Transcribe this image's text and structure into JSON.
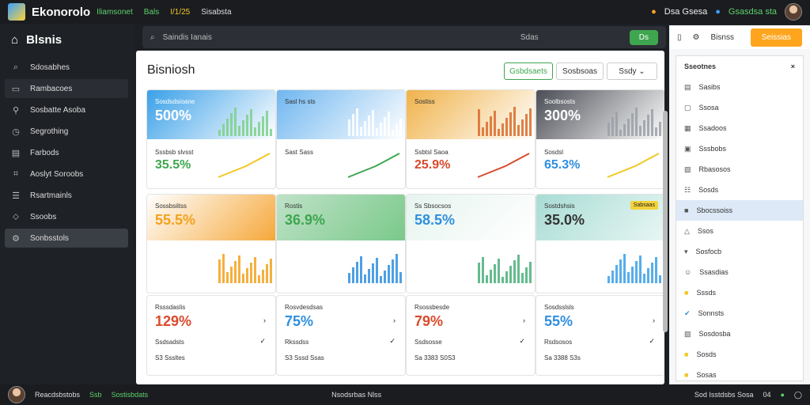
{
  "topbar": {
    "app_title": "Ekonorolo",
    "items": [
      "Iliamsonet",
      "Bals",
      "I/1/25",
      "Sisabsta"
    ],
    "right_label": "Dsa Gsesa",
    "right_link": "Gsasdsa sta"
  },
  "sidebar": {
    "title": "Blsnis",
    "items": [
      {
        "label": "Sdosabhes",
        "icon": "search-icon"
      },
      {
        "label": "Rambacoes",
        "icon": "folder-icon"
      },
      {
        "label": "Sosbatte Asoba",
        "icon": "pin-icon"
      },
      {
        "label": "Segrothing",
        "icon": "clock-icon"
      },
      {
        "label": "Farbods",
        "icon": "document-icon"
      },
      {
        "label": "Aoslyt Soroobs",
        "icon": "filter-icon"
      },
      {
        "label": "Rsartmainls",
        "icon": "list-icon"
      },
      {
        "label": "Ssoobs",
        "icon": "tag-icon"
      },
      {
        "label": "Sonbsstols",
        "icon": "settings-icon"
      }
    ]
  },
  "search": {
    "placeholder": "Saindis Ianais",
    "mid_label": "Sdas",
    "toggle_label": "Ds"
  },
  "main": {
    "title": "Bisniosh",
    "btn_green": "Gsbdsaets",
    "btn_mid": "Sosbsoas",
    "btn_select": "Ssdy"
  },
  "cards": [
    {
      "title": "Sosdsdsioane",
      "value": "500%",
      "sub_title": "Sssbsb slvsst",
      "sub_value": "35.5%"
    },
    {
      "title": "Sasl hs sts",
      "value": "",
      "sub_title": "Sast Sass",
      "sub_value": ""
    },
    {
      "title": "Sostiss",
      "value": "",
      "sub_title": "Ssbtsl Saoa",
      "sub_value": "25.9%"
    },
    {
      "title": "Soolbsosts",
      "value": "300%",
      "sub_title": "Sosdsl",
      "sub_value": "65.3%"
    },
    {
      "title": "Sossbsiitss",
      "value": "55.5%",
      "chart_label": "Sb"
    },
    {
      "title": "Rostis",
      "value": "36.9%"
    },
    {
      "title": "Ss Sbsocsos",
      "value": "58.5%"
    },
    {
      "title": "Sostdshsis",
      "value": "35.0%",
      "badge": "Sabsaas"
    },
    {
      "title": "Rsssdaslis",
      "value": "129%",
      "row": "Ssdsadsts",
      "foot": "S3 Sssltes",
      "foot2": "S3 Ssso"
    },
    {
      "title": "Rosvdesdsas",
      "value": "75%",
      "row": "Rkssdss",
      "foot": "S3 Sssd Ssas"
    },
    {
      "title": "Rsossbesde",
      "value": "79%",
      "row": "Ssdsosse",
      "foot": "Sa 3383 S0S3"
    },
    {
      "title": "Sosdsslsls",
      "value": "55%",
      "row": "Rsdsosos",
      "foot": "Sa 3388 S3s"
    }
  ],
  "right_panel": {
    "top_label": "Bisnss",
    "top_button": "Seissias",
    "heading": "Sseotnes",
    "items": [
      {
        "label": "Sasibs",
        "icon": "document-icon"
      },
      {
        "label": "Ssosa",
        "icon": "page-icon"
      },
      {
        "label": "Ssadoos",
        "icon": "grid-icon"
      },
      {
        "label": "Sssbobs",
        "icon": "image-icon"
      },
      {
        "label": "Rbasosos",
        "icon": "frame-icon"
      },
      {
        "label": "Sosds",
        "icon": "table-icon"
      },
      {
        "label": "Sbocssoiss",
        "icon": "square-icon"
      },
      {
        "label": "Ssos",
        "icon": "bell-icon"
      },
      {
        "label": "Sosfocb",
        "icon": "dropdown"
      },
      {
        "label": "Ssasdias",
        "icon": "smile-icon"
      },
      {
        "label": "Sssds",
        "icon": "yellow-icon"
      },
      {
        "label": "Sonnsts",
        "icon": "check-icon"
      },
      {
        "label": "Sosdosba",
        "icon": "frame-icon"
      },
      {
        "label": "Sosds",
        "icon": "yellow-icon"
      },
      {
        "label": "Sosas",
        "icon": "yellow-icon"
      }
    ]
  },
  "bottombar": {
    "user": "Reacdsbstobs",
    "link": "Sostisbdats",
    "sub": "Ssb",
    "center": "Nsodsrbas Nlss",
    "right": "Sod Isstdsbs Sosa",
    "num": "04"
  },
  "colors": {
    "accent": "#3ea64f",
    "blue": "#2f8fe0",
    "orange": "#ffa51d",
    "red": "#d94a2b"
  }
}
